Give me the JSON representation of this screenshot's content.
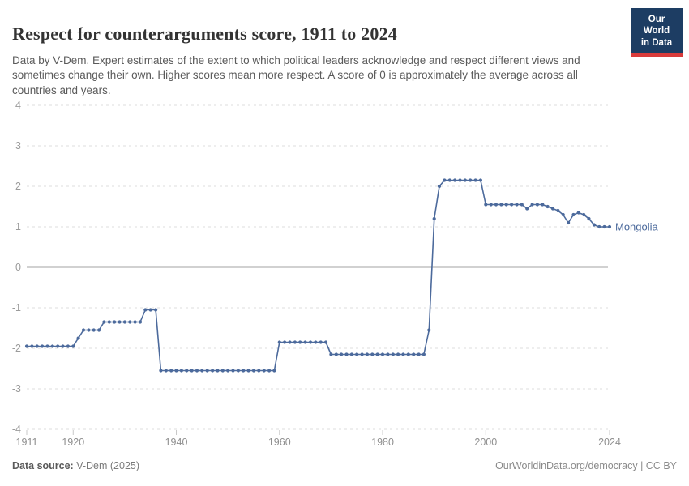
{
  "header": {
    "title": "Respect for counterarguments score, 1911 to 2024",
    "subtitle": "Data by V-Dem. Expert estimates of the extent to which political leaders acknowledge and respect different views and sometimes change their own. Higher scores mean more respect. A score of 0 is approximately the average across all countries and years.",
    "logo": {
      "line1": "Our World",
      "line2": "in Data",
      "bg_color": "#1d3d63",
      "stripe_color": "#d93b3b"
    }
  },
  "footer": {
    "source_label": "Data source:",
    "source_value": " V-Dem (2025)",
    "right_text": "OurWorldinData.org/democracy | CC BY"
  },
  "chart_data": {
    "type": "line",
    "title": "Respect for counterarguments score, 1911 to 2024",
    "xlabel": "",
    "ylabel": "",
    "xlim": [
      1911,
      2024
    ],
    "ylim": [
      -4,
      4
    ],
    "y_ticks": [
      4,
      3,
      2,
      1,
      0,
      -1,
      -2,
      -3,
      -4
    ],
    "x_ticks": [
      1911,
      1920,
      1940,
      1960,
      1980,
      2000,
      2024
    ],
    "grid": "horizontal-dashed",
    "zero_line": true,
    "legend_position": "end-of-line",
    "marker": "circle",
    "series": [
      {
        "name": "Mongolia",
        "color": "#4c6a9c",
        "points": [
          [
            1911,
            -1.95
          ],
          [
            1912,
            -1.95
          ],
          [
            1913,
            -1.95
          ],
          [
            1914,
            -1.95
          ],
          [
            1915,
            -1.95
          ],
          [
            1916,
            -1.95
          ],
          [
            1917,
            -1.95
          ],
          [
            1918,
            -1.95
          ],
          [
            1919,
            -1.95
          ],
          [
            1920,
            -1.95
          ],
          [
            1921,
            -1.75
          ],
          [
            1922,
            -1.55
          ],
          [
            1923,
            -1.55
          ],
          [
            1924,
            -1.55
          ],
          [
            1925,
            -1.55
          ],
          [
            1926,
            -1.35
          ],
          [
            1927,
            -1.35
          ],
          [
            1928,
            -1.35
          ],
          [
            1929,
            -1.35
          ],
          [
            1930,
            -1.35
          ],
          [
            1931,
            -1.35
          ],
          [
            1932,
            -1.35
          ],
          [
            1933,
            -1.35
          ],
          [
            1934,
            -1.05
          ],
          [
            1935,
            -1.05
          ],
          [
            1936,
            -1.05
          ],
          [
            1937,
            -2.55
          ],
          [
            1938,
            -2.55
          ],
          [
            1939,
            -2.55
          ],
          [
            1940,
            -2.55
          ],
          [
            1941,
            -2.55
          ],
          [
            1942,
            -2.55
          ],
          [
            1943,
            -2.55
          ],
          [
            1944,
            -2.55
          ],
          [
            1945,
            -2.55
          ],
          [
            1946,
            -2.55
          ],
          [
            1947,
            -2.55
          ],
          [
            1948,
            -2.55
          ],
          [
            1949,
            -2.55
          ],
          [
            1950,
            -2.55
          ],
          [
            1951,
            -2.55
          ],
          [
            1952,
            -2.55
          ],
          [
            1953,
            -2.55
          ],
          [
            1954,
            -2.55
          ],
          [
            1955,
            -2.55
          ],
          [
            1956,
            -2.55
          ],
          [
            1957,
            -2.55
          ],
          [
            1958,
            -2.55
          ],
          [
            1959,
            -2.55
          ],
          [
            1960,
            -1.85
          ],
          [
            1961,
            -1.85
          ],
          [
            1962,
            -1.85
          ],
          [
            1963,
            -1.85
          ],
          [
            1964,
            -1.85
          ],
          [
            1965,
            -1.85
          ],
          [
            1966,
            -1.85
          ],
          [
            1967,
            -1.85
          ],
          [
            1968,
            -1.85
          ],
          [
            1969,
            -1.85
          ],
          [
            1970,
            -2.15
          ],
          [
            1971,
            -2.15
          ],
          [
            1972,
            -2.15
          ],
          [
            1973,
            -2.15
          ],
          [
            1974,
            -2.15
          ],
          [
            1975,
            -2.15
          ],
          [
            1976,
            -2.15
          ],
          [
            1977,
            -2.15
          ],
          [
            1978,
            -2.15
          ],
          [
            1979,
            -2.15
          ],
          [
            1980,
            -2.15
          ],
          [
            1981,
            -2.15
          ],
          [
            1982,
            -2.15
          ],
          [
            1983,
            -2.15
          ],
          [
            1984,
            -2.15
          ],
          [
            1985,
            -2.15
          ],
          [
            1986,
            -2.15
          ],
          [
            1987,
            -2.15
          ],
          [
            1988,
            -2.15
          ],
          [
            1989,
            -1.55
          ],
          [
            1990,
            1.2
          ],
          [
            1991,
            2.0
          ],
          [
            1992,
            2.15
          ],
          [
            1993,
            2.15
          ],
          [
            1994,
            2.15
          ],
          [
            1995,
            2.15
          ],
          [
            1996,
            2.15
          ],
          [
            1997,
            2.15
          ],
          [
            1998,
            2.15
          ],
          [
            1999,
            2.15
          ],
          [
            2000,
            1.55
          ],
          [
            2001,
            1.55
          ],
          [
            2002,
            1.55
          ],
          [
            2003,
            1.55
          ],
          [
            2004,
            1.55
          ],
          [
            2005,
            1.55
          ],
          [
            2006,
            1.55
          ],
          [
            2007,
            1.55
          ],
          [
            2008,
            1.45
          ],
          [
            2009,
            1.55
          ],
          [
            2010,
            1.55
          ],
          [
            2011,
            1.55
          ],
          [
            2012,
            1.5
          ],
          [
            2013,
            1.45
          ],
          [
            2014,
            1.4
          ],
          [
            2015,
            1.3
          ],
          [
            2016,
            1.1
          ],
          [
            2017,
            1.3
          ],
          [
            2018,
            1.35
          ],
          [
            2019,
            1.3
          ],
          [
            2020,
            1.2
          ],
          [
            2021,
            1.05
          ],
          [
            2022,
            1.0
          ],
          [
            2023,
            1.0
          ],
          [
            2024,
            1.0
          ]
        ]
      }
    ]
  }
}
